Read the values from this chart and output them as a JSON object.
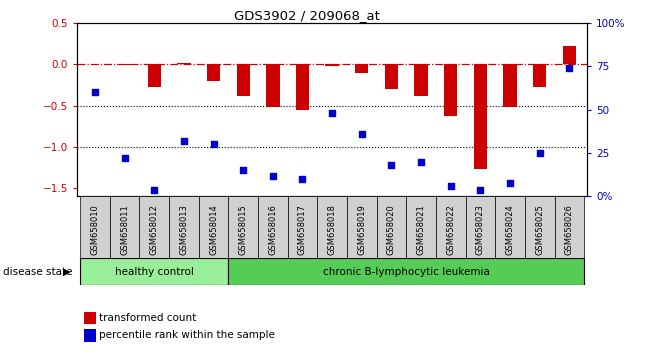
{
  "title": "GDS3902 / 209068_at",
  "samples": [
    "GSM658010",
    "GSM658011",
    "GSM658012",
    "GSM658013",
    "GSM658014",
    "GSM658015",
    "GSM658016",
    "GSM658017",
    "GSM658018",
    "GSM658019",
    "GSM658020",
    "GSM658021",
    "GSM658022",
    "GSM658023",
    "GSM658024",
    "GSM658025",
    "GSM658026"
  ],
  "bar_values": [
    0.0,
    -0.01,
    -0.27,
    0.01,
    -0.2,
    -0.38,
    -0.52,
    -0.55,
    -0.02,
    -0.1,
    -0.3,
    -0.38,
    -0.62,
    -1.27,
    -0.52,
    -0.28,
    0.22
  ],
  "scatter_pct": [
    60,
    22,
    4,
    32,
    30,
    15,
    12,
    10,
    48,
    36,
    18,
    20,
    6,
    4,
    8,
    25,
    74
  ],
  "ylim_left": [
    -1.6,
    0.5
  ],
  "ylim_right": [
    0,
    100
  ],
  "yticks_left": [
    0.5,
    0.0,
    -0.5,
    -1.0,
    -1.5
  ],
  "yticks_right": [
    0,
    25,
    50,
    75,
    100
  ],
  "ytick_labels_right": [
    "0%",
    "25",
    "50",
    "75",
    "100%"
  ],
  "hline_zero_color": "#cc0000",
  "hline_dotted_vals": [
    -0.5,
    -1.0
  ],
  "bar_color": "#cc0000",
  "scatter_color": "#0000cc",
  "healthy_label": "healthy control",
  "leukemia_label": "chronic B-lymphocytic leukemia",
  "disease_label": "disease state",
  "legend_bar": "transformed count",
  "legend_scatter": "percentile rank within the sample",
  "healthy_count": 5,
  "total_count": 17,
  "healthy_bg": "#99ee99",
  "leukemia_bg": "#55cc55",
  "xtick_bg": "#d0d0d0",
  "plot_bg": "#ffffff"
}
